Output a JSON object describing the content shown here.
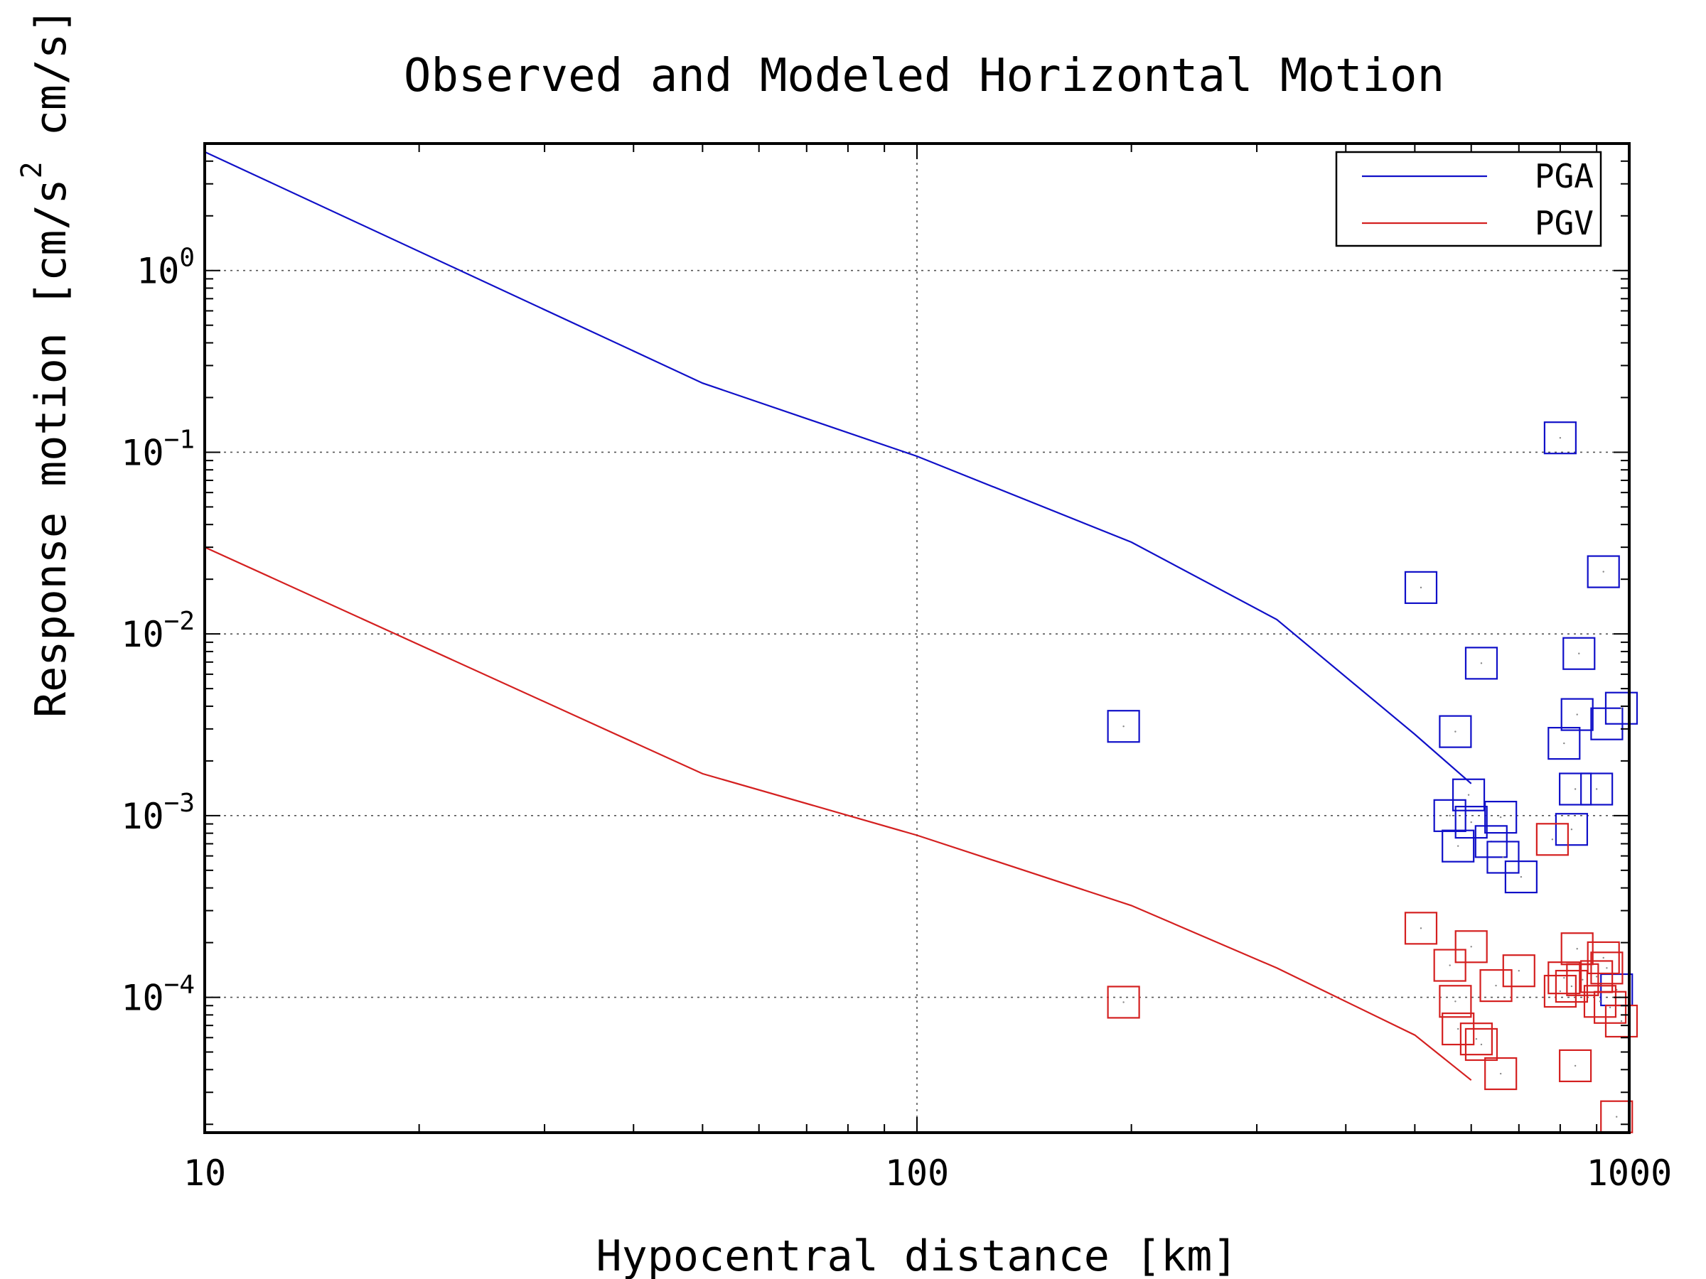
{
  "chart_data": {
    "type": "line",
    "title": "Observed and Modeled Horizontal Motion",
    "xlabel": "Hypocentral distance [km]",
    "ylabel": "Response motion [cm/s² cm/s]",
    "ylabel_parts": {
      "main": "Response motion [cm/s",
      "sup": "2",
      "tail": "cm/s]"
    },
    "x_scale": "log",
    "y_scale": "log",
    "xlim": [
      10,
      1000
    ],
    "ylim": [
      1.8e-05,
      5
    ],
    "x_ticks": [
      {
        "value": 10,
        "label": "10"
      },
      {
        "value": 100,
        "label": "100"
      },
      {
        "value": 1000,
        "label": "1000"
      }
    ],
    "y_ticks": [
      {
        "value": 1,
        "base": "10",
        "exp": "0"
      },
      {
        "value": 0.1,
        "base": "10",
        "exp": "−1"
      },
      {
        "value": 0.01,
        "base": "10",
        "exp": "−2"
      },
      {
        "value": 0.001,
        "base": "10",
        "exp": "−3"
      },
      {
        "value": 0.0001,
        "base": "10",
        "exp": "−4"
      }
    ],
    "grid": true,
    "legend_position": "top-right",
    "series": [
      {
        "name": "PGA",
        "kind": "line",
        "color": "#1010c8",
        "x": [
          10,
          50,
          100,
          200,
          320,
          500,
          600
        ],
        "y": [
          4.5,
          0.24,
          0.095,
          0.032,
          0.012,
          0.0028,
          0.0015
        ]
      },
      {
        "name": "PGV",
        "kind": "line",
        "color": "#d42020",
        "x": [
          10,
          50,
          100,
          200,
          320,
          500,
          600
        ],
        "y": [
          0.03,
          0.0017,
          0.00078,
          0.00032,
          0.000145,
          6.2e-05,
          3.5e-05
        ]
      },
      {
        "kind": "scatter",
        "marker": "square",
        "color": "#1010c8",
        "x": [
          195,
          510,
          570,
          575,
          560,
          595,
          600,
          620,
          640,
          660,
          665,
          705,
          800,
          810,
          830,
          840,
          845,
          850,
          900,
          920,
          930,
          960,
          975
        ],
        "y": [
          0.0031,
          0.018,
          0.0029,
          0.00068,
          0.001,
          0.0013,
          0.00092,
          0.0069,
          0.00072,
          0.00098,
          0.00059,
          0.00046,
          0.12,
          0.0025,
          0.00084,
          0.0014,
          0.0036,
          0.0078,
          0.0014,
          0.022,
          0.0032,
          0.00011,
          0.0039
        ]
      },
      {
        "kind": "scatter",
        "marker": "square",
        "color": "#d42020",
        "x": [
          195,
          510,
          560,
          570,
          575,
          600,
          610,
          620,
          650,
          660,
          700,
          780,
          800,
          810,
          830,
          840,
          845,
          860,
          900,
          910,
          920,
          930,
          940,
          960,
          975
        ],
        "y": [
          9.4e-05,
          0.00024,
          0.00015,
          9.5e-05,
          6.7e-05,
          0.00019,
          5.9e-05,
          5.5e-05,
          0.000116,
          3.8e-05,
          0.00014,
          0.00074,
          0.000108,
          0.000128,
          0.000115,
          4.2e-05,
          0.000185,
          0.000125,
          0.00013,
          9.5e-05,
          0.000165,
          0.000145,
          8.8e-05,
          2.2e-05,
          7.4e-05
        ]
      }
    ]
  }
}
